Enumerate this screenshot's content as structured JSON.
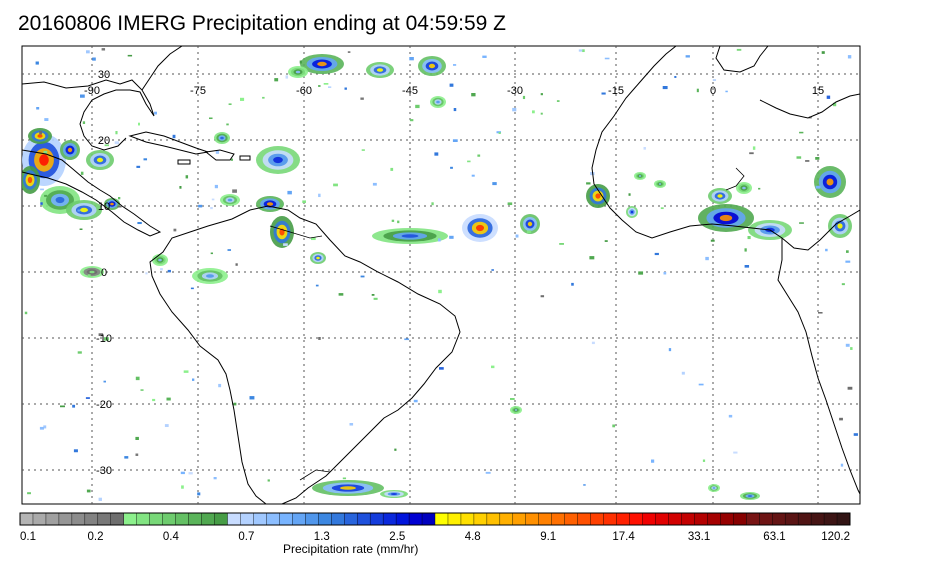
{
  "title": "20160806 IMERG Precipitation ending at 04:59:59 Z",
  "longitude_labels": [
    "-90",
    "-75",
    "-60",
    "-45",
    "-30",
    "-15",
    "0",
    "15"
  ],
  "latitude_labels": [
    "30",
    "20",
    "10",
    "0",
    "-10",
    "-20",
    "-30"
  ],
  "colorbar": {
    "label": "Precipitation rate (mm/hr)",
    "tick_labels": [
      "0.1",
      "0.2",
      "0.4",
      "0.7",
      "1.3",
      "2.5",
      "4.8",
      "9.1",
      "17.4",
      "33.1",
      "63.1",
      "120.2"
    ],
    "colors": [
      "#b4b4b4",
      "#aaaaaa",
      "#a0a0a0",
      "#969696",
      "#8c8c8c",
      "#828282",
      "#787878",
      "#6e6e6e",
      "#8cf08c",
      "#82e482",
      "#78d878",
      "#6ecc6e",
      "#64c064",
      "#5ab45a",
      "#50a850",
      "#469c46",
      "#c8dcff",
      "#b4d2ff",
      "#a0c8ff",
      "#8cbeff",
      "#78b4ff",
      "#64a5f5",
      "#5096eb",
      "#3c87e1",
      "#3278dc",
      "#2864dc",
      "#1e50dc",
      "#143cdc",
      "#0a28dc",
      "#0014dc",
      "#0000d2",
      "#0000be",
      "#ffff00",
      "#fff000",
      "#ffe000",
      "#ffd000",
      "#ffc000",
      "#ffb000",
      "#ffa000",
      "#ff9000",
      "#ff8000",
      "#ff7000",
      "#ff6000",
      "#ff5000",
      "#ff4000",
      "#ff3000",
      "#ff2000",
      "#ff1000",
      "#f00000",
      "#e10000",
      "#d20000",
      "#c30000",
      "#b40000",
      "#a50000",
      "#960000",
      "#870000",
      "#781414",
      "#6e1414",
      "#641414",
      "#5a1414",
      "#501414",
      "#461414",
      "#3c1414",
      "#321414"
    ]
  }
}
